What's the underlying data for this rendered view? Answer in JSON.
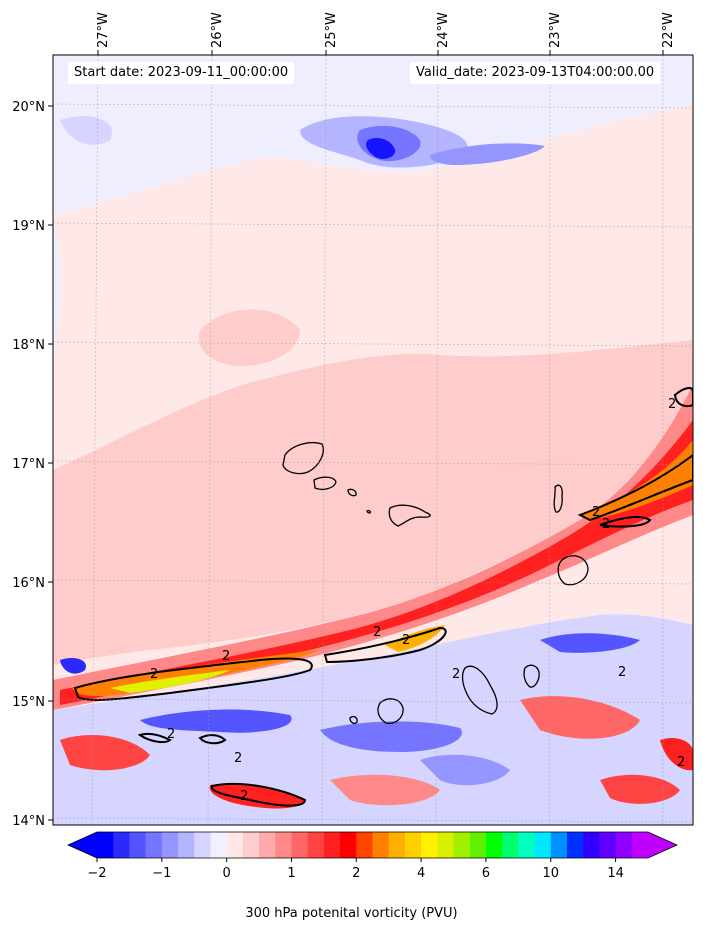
{
  "header": {
    "start_date": "Start date: 2023-09-11_00:00:00",
    "valid_date": "Valid_date: 2023-09-13T04:00:00.00"
  },
  "axes": {
    "lon_labels": [
      "27°W",
      "26°W",
      "25°W",
      "24°W",
      "23°W",
      "22°W"
    ],
    "lat_labels": [
      "20°N",
      "19°N",
      "18°N",
      "17°N",
      "16°N",
      "15°N",
      "14°N"
    ]
  },
  "contour_label": "2",
  "colorbar": {
    "label": "300 hPa potenital vorticity (PVU)",
    "ticks": [
      "−2",
      "−1",
      "0",
      "1",
      "2",
      "4",
      "6",
      "10",
      "14"
    ],
    "colors": [
      "#0000ff",
      "#2a2aff",
      "#5555ff",
      "#7575ff",
      "#9595ff",
      "#b5b5ff",
      "#d5d5ff",
      "#f0f0ff",
      "#ffe8e8",
      "#ffcccc",
      "#ffaaaa",
      "#ff8888",
      "#ff6666",
      "#ff4444",
      "#ff2020",
      "#ff0000",
      "#ff4400",
      "#ff8000",
      "#ffb000",
      "#ffd000",
      "#fff000",
      "#d8f000",
      "#a0f000",
      "#60f000",
      "#00ff00",
      "#00ff70",
      "#00ffc0",
      "#00e8ff",
      "#0090ff",
      "#0030ff",
      "#3000ff",
      "#6000ff",
      "#9000ff",
      "#c000ff"
    ],
    "extend_low_color": "#0000ff",
    "extend_high_color": "#c000ff"
  },
  "map_colors": {
    "background": "#ffe8e8",
    "light_blue": "#eeeeff",
    "pink": "#ffcccc",
    "red": "#ff2020",
    "orange": "#ff8000",
    "yellow": "#e0f000",
    "blue": "#5555ff",
    "dark_blue": "#1515ff",
    "coast": "#000000"
  }
}
